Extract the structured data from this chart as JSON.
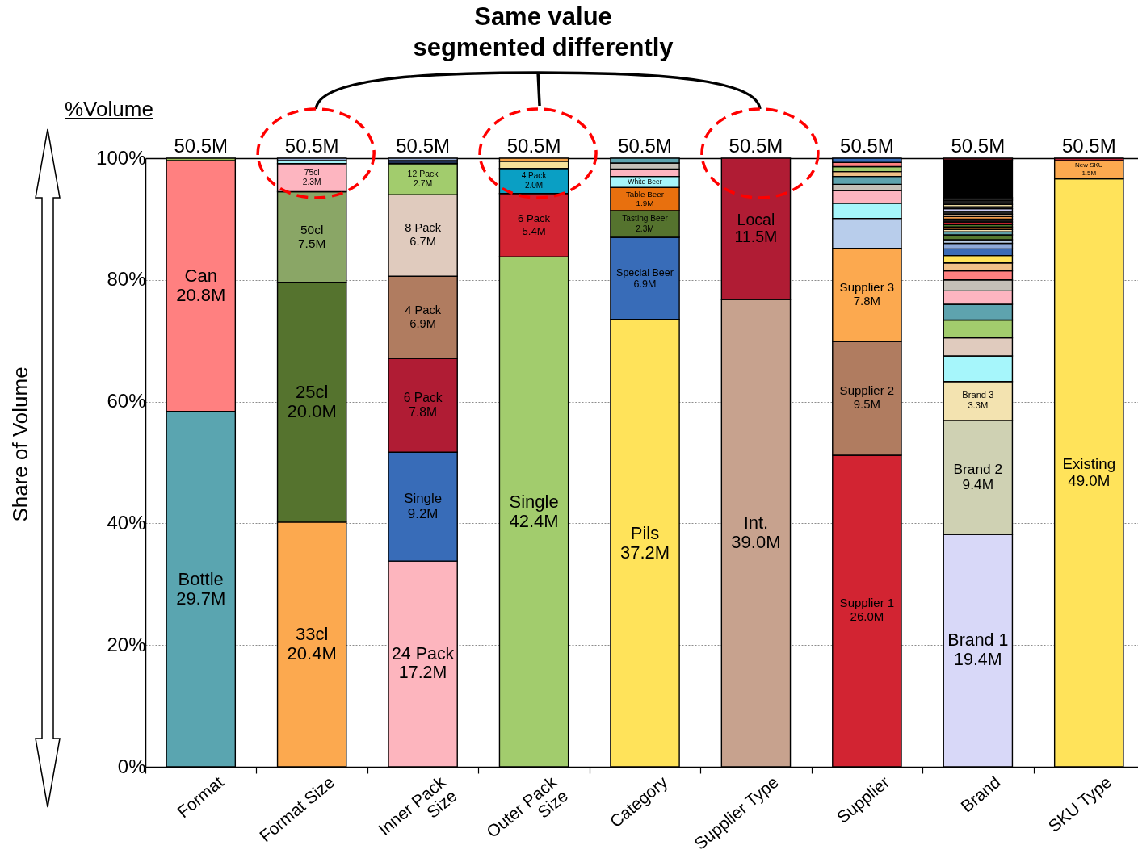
{
  "chart_data": {
    "type": "bar",
    "title": "Same value\nsegmented differently",
    "ylabel": "Share of Volume",
    "annotations": [
      "%Volume",
      {
        "text": "50.5M",
        "x": "Format",
        "y": 100
      },
      {
        "text": "50.5M",
        "x": "Format Size",
        "y": 100
      },
      {
        "text": "50.5M",
        "x": "Inner Pack Size",
        "y": 100
      },
      {
        "text": "50.5M",
        "x": "Outer Pack Size",
        "y": 100
      },
      {
        "text": "50.5M",
        "x": "Category",
        "y": 100
      },
      {
        "text": "50.5M",
        "x": "Supplier Type",
        "y": 100
      },
      {
        "text": "50.5M",
        "x": "Supplier",
        "y": 100
      },
      {
        "text": "50.5M",
        "x": "Brand",
        "y": 100
      },
      {
        "text": "50.5M",
        "x": "SKU Type",
        "y": 100
      }
    ],
    "categories": [
      "Format",
      "Format Size",
      "Inner Pack Size",
      "Outer Pack Size",
      "Category",
      "Supplier Type",
      "Supplier",
      "Brand",
      "SKU Type"
    ],
    "stacked": true,
    "ylim": [
      0,
      100
    ],
    "yticks": [
      {
        "value": 0,
        "label": "0%"
      },
      {
        "value": 20,
        "label": "20%"
      },
      {
        "value": 40,
        "label": "40%"
      },
      {
        "value": 60,
        "label": "60%"
      },
      {
        "value": 80,
        "label": "80%"
      },
      {
        "value": 100,
        "label": "100%"
      }
    ],
    "grid": "y",
    "series": [
      {
        "name": "Bottle\n29.7M",
        "color": "#5aa5b0",
        "values": [
          58.4,
          null,
          null,
          null,
          null,
          null,
          null,
          null,
          null
        ]
      },
      {
        "name": "Can\n20.8M",
        "color": "#ff8080",
        "values": [
          41.2,
          null,
          null,
          null,
          null,
          null,
          null,
          null,
          null
        ]
      },
      {
        "name": "33cl\n20.4M",
        "color": "#fca94f",
        "values": [
          null,
          40.2,
          null,
          null,
          null,
          null,
          null,
          null,
          null
        ]
      },
      {
        "name": "25cl\n20.0M",
        "color": "#55732e",
        "values": [
          null,
          39.4,
          null,
          null,
          null,
          null,
          null,
          null,
          null
        ]
      },
      {
        "name": "50cl\n7.5M",
        "color": "#8aa666",
        "values": [
          null,
          14.9,
          null,
          null,
          null,
          null,
          null,
          null,
          null
        ]
      },
      {
        "name": "75cl\n2.3M",
        "color": "#fdb5c0",
        "values": [
          null,
          4.6,
          null,
          null,
          null,
          null,
          null,
          null,
          null
        ]
      },
      {
        "name": "24 Pack\n17.2M",
        "color": "#fdb5be",
        "values": [
          null,
          null,
          33.8,
          null,
          null,
          null,
          null,
          null,
          null
        ]
      },
      {
        "name": "Single\n9.2M",
        "color": "#386cb8",
        "values": [
          null,
          null,
          17.9,
          null,
          null,
          null,
          null,
          null,
          null
        ]
      },
      {
        "name": "6 Pack\n7.8M",
        "color": "#b01c34",
        "values": [
          null,
          null,
          15.4,
          null,
          null,
          null,
          null,
          null,
          null
        ]
      },
      {
        "name": "4 Pack\n6.9M",
        "color": "#b07c60",
        "values": [
          null,
          null,
          13.5,
          null,
          null,
          null,
          null,
          null,
          null
        ]
      },
      {
        "name": "8 Pack\n6.7M",
        "color": "#e0cbbe",
        "values": [
          null,
          null,
          13.4,
          null,
          null,
          null,
          null,
          null,
          null
        ]
      },
      {
        "name": "12 Pack\n2.7M",
        "color": "#a2cc6d",
        "values": [
          null,
          null,
          5.1,
          null,
          null,
          null,
          null,
          null,
          null
        ]
      },
      {
        "name": "Single\n42.4M",
        "color": "#a2cc6d",
        "values": [
          null,
          null,
          null,
          83.8,
          null,
          null,
          null,
          null,
          null
        ]
      },
      {
        "name": "6 Pack\n5.4M",
        "color": "#d22432",
        "values": [
          null,
          null,
          null,
          10.4,
          null,
          null,
          null,
          null,
          null
        ]
      },
      {
        "name": "4 Pack\n2.0M",
        "color": "#0a9fc4",
        "values": [
          null,
          null,
          null,
          4.1,
          null,
          null,
          null,
          null,
          null
        ]
      },
      {
        "name": "Pils\n37.2M",
        "color": "#ffe35a",
        "values": [
          null,
          null,
          null,
          null,
          73.5,
          null,
          null,
          null,
          null
        ]
      },
      {
        "name": "Special Beer\n6.9M",
        "color": "#386cb8",
        "values": [
          null,
          null,
          null,
          null,
          13.5,
          null,
          null,
          null,
          null
        ]
      },
      {
        "name": "Tasting Beer\n2.3M",
        "color": "#55732e",
        "values": [
          null,
          null,
          null,
          null,
          4.4,
          null,
          null,
          null,
          null
        ]
      },
      {
        "name": "Table Beer\n1.9M",
        "color": "#e8700e",
        "values": [
          null,
          null,
          null,
          null,
          3.8,
          null,
          null,
          null,
          null
        ]
      },
      {
        "name": "White Beer",
        "color": "#a6f6fb",
        "values": [
          null,
          null,
          null,
          null,
          1.8,
          null,
          null,
          null,
          null
        ]
      },
      {
        "name": "Int.\n39.0M",
        "color": "#c7a28e",
        "values": [
          null,
          null,
          null,
          null,
          null,
          76.8,
          null,
          null,
          null
        ]
      },
      {
        "name": "Local\n11.5M",
        "color": "#b01c34",
        "values": [
          null,
          null,
          null,
          null,
          null,
          23.2,
          null,
          null,
          null
        ]
      },
      {
        "name": "Supplier 1\n26.0M",
        "color": "#d22432",
        "values": [
          null,
          null,
          null,
          null,
          null,
          null,
          51.2,
          null,
          null
        ]
      },
      {
        "name": "Supplier 2\n9.5M",
        "color": "#b07c60",
        "values": [
          null,
          null,
          null,
          null,
          null,
          null,
          18.7,
          null,
          null
        ]
      },
      {
        "name": "Supplier 3\n7.8M",
        "color": "#fca94f",
        "values": [
          null,
          null,
          null,
          null,
          null,
          null,
          15.3,
          null,
          null
        ]
      },
      {
        "name": "Brand 1\n19.4M",
        "color": "#d8d8f8",
        "values": [
          null,
          null,
          null,
          null,
          null,
          null,
          null,
          38.2,
          null
        ]
      },
      {
        "name": "Brand 2\n9.4M",
        "color": "#cfd1b3",
        "values": [
          null,
          null,
          null,
          null,
          null,
          null,
          null,
          18.7,
          null
        ]
      },
      {
        "name": "Brand 3\n3.3M",
        "color": "#f3e3b0",
        "values": [
          null,
          null,
          null,
          null,
          null,
          null,
          null,
          6.4,
          null
        ]
      },
      {
        "name": "Existing\n49.0M",
        "color": "#ffe35a",
        "values": [
          null,
          null,
          null,
          null,
          null,
          null,
          null,
          null,
          96.6
        ]
      },
      {
        "name": "New SKU\n1.5M",
        "color": "#fca94f",
        "values": [
          null,
          null,
          null,
          null,
          null,
          null,
          null,
          null,
          3.0
        ]
      },
      {
        "values": [
          0.4,
          0.5,
          0.5,
          1.2,
          1.2,
          null,
          4.9,
          4.2,
          0.4
        ],
        "colors": [
          "#9bbb59",
          "#a5f2f7",
          "#1f2f50",
          "#f5e19a",
          "#fdb5c0",
          null,
          "#b8cdeb",
          "#a6f6fb",
          "#b01c34"
        ]
      },
      {
        "values": [
          null,
          0.4,
          0.4,
          0.5,
          1.0,
          null,
          2.5,
          3.0,
          null
        ],
        "colors": [
          null,
          "#95a9cc",
          "#95a9cc",
          "#f7a54a",
          "#c5c0b8",
          null,
          "#a6f6fb",
          "#e0cbbe",
          null
        ]
      },
      {
        "values": [
          null,
          null,
          null,
          null,
          0.8,
          null,
          2.1,
          2.9,
          null
        ],
        "colors": [
          null,
          null,
          null,
          null,
          "#5ea3ae",
          null,
          "#fdb5c0",
          "#a2cc6d",
          null
        ]
      },
      {
        "values": [
          null,
          null,
          null,
          null,
          null,
          null,
          1.0,
          2.6,
          null
        ],
        "colors": [
          null,
          null,
          null,
          null,
          null,
          null,
          "#c5c0b8",
          "#5ea3ae",
          null
        ]
      },
      {
        "values": [
          null,
          null,
          null,
          null,
          null,
          null,
          1.3,
          2.2,
          null
        ],
        "colors": [
          null,
          null,
          null,
          null,
          null,
          null,
          "#5ea3ae",
          "#fdb5c0",
          null
        ]
      },
      {
        "values": [
          null,
          null,
          null,
          null,
          null,
          null,
          0.8,
          1.8,
          null
        ],
        "colors": [
          null,
          null,
          null,
          null,
          null,
          null,
          "#f0c088",
          "#c5c0b8",
          null
        ]
      },
      {
        "values": [
          null,
          null,
          null,
          null,
          null,
          null,
          0.8,
          1.5,
          null
        ],
        "colors": [
          null,
          null,
          null,
          null,
          null,
          null,
          "#a2cc6d",
          "#ff8080",
          null
        ]
      },
      {
        "values": [
          null,
          null,
          null,
          null,
          null,
          null,
          0.7,
          1.3,
          null
        ],
        "colors": [
          null,
          null,
          null,
          null,
          null,
          null,
          "#ff8080",
          "#f0c088",
          null
        ]
      },
      {
        "values": [
          null,
          null,
          null,
          null,
          null,
          null,
          0.7,
          1.2,
          null
        ],
        "colors": [
          null,
          null,
          null,
          null,
          null,
          null,
          "#386cb8",
          "#ffe35a",
          null
        ]
      },
      {
        "values": [
          null,
          null,
          null,
          null,
          null,
          null,
          null,
          1.1,
          null
        ],
        "color": "#3b6cb6"
      },
      {
        "values": [
          null,
          null,
          null,
          null,
          null,
          null,
          null,
          0.9,
          null
        ],
        "color": "#8eaadb"
      },
      {
        "values": [
          null,
          null,
          null,
          null,
          null,
          null,
          null,
          0.6,
          null
        ],
        "color": "#b8cce4"
      },
      {
        "values": [
          null,
          null,
          null,
          null,
          null,
          null,
          null,
          0.8,
          null
        ],
        "color": "#57792f"
      },
      {
        "values": [
          null,
          null,
          null,
          null,
          null,
          null,
          null,
          0.5,
          null
        ],
        "color": "#5fa0a8"
      },
      {
        "values": [
          null,
          null,
          null,
          null,
          null,
          null,
          null,
          0.4,
          null
        ],
        "color": "#f4e0b0"
      },
      {
        "values": [
          null,
          null,
          null,
          null,
          null,
          null,
          null,
          0.4,
          null
        ],
        "color": "#ed7d31"
      },
      {
        "values": [
          null,
          null,
          null,
          null,
          null,
          null,
          null,
          0.4,
          null
        ],
        "color": "#4f7a2c"
      },
      {
        "values": [
          null,
          null,
          null,
          null,
          null,
          null,
          null,
          0.4,
          null
        ],
        "color": "#c0202c"
      },
      {
        "values": [
          null,
          null,
          null,
          null,
          null,
          null,
          null,
          0.5,
          null
        ],
        "color": "#1a1a1a"
      },
      {
        "values": [
          null,
          null,
          null,
          null,
          null,
          null,
          null,
          0.4,
          null
        ],
        "color": "#f39a4a"
      },
      {
        "values": [
          null,
          null,
          null,
          null,
          null,
          null,
          null,
          0.4,
          null
        ],
        "color": "#b89878"
      },
      {
        "values": [
          null,
          null,
          null,
          null,
          null,
          null,
          null,
          0.5,
          null
        ],
        "color": "#262626"
      },
      {
        "values": [
          null,
          null,
          null,
          null,
          null,
          null,
          null,
          0.4,
          null
        ],
        "color": "#c8c8f0"
      },
      {
        "values": [
          null,
          null,
          null,
          null,
          null,
          null,
          null,
          0.3,
          null
        ],
        "color": "#1a1a1a"
      },
      {
        "values": [
          null,
          null,
          null,
          null,
          null,
          null,
          null,
          0.4,
          null
        ],
        "color": "#e8d8a0"
      },
      {
        "values": [
          null,
          null,
          null,
          null,
          null,
          null,
          null,
          0.7,
          null
        ],
        "color": "#202020"
      },
      {
        "values": [
          null,
          null,
          null,
          null,
          null,
          null,
          null,
          0.4,
          null
        ],
        "color": "#8c8c8c"
      },
      {
        "values": [
          null,
          null,
          null,
          null,
          null,
          null,
          null,
          6.2,
          null
        ],
        "color": "#000000"
      },
      {
        "values": [
          null,
          null,
          null,
          null,
          null,
          null,
          null,
          0.3,
          null
        ],
        "color": "#a01e2e"
      }
    ]
  }
}
